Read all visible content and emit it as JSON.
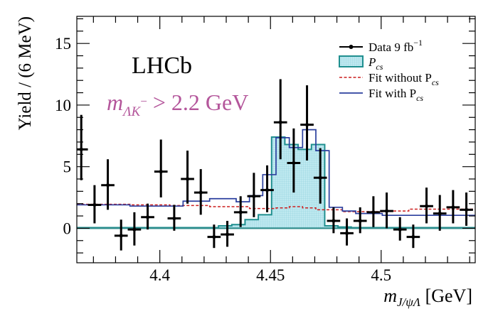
{
  "chart_data": {
    "type": "histogram",
    "title": "",
    "xlabel_parts": {
      "m": "m",
      "sub": "J/ψΛ",
      "unit": "[GeV]"
    },
    "ylabel": "Yield / (6 MeV)",
    "xlim": [
      4.3625,
      4.5425
    ],
    "ylim": [
      -2.8,
      17.2
    ],
    "xticks": [
      {
        "value": 4.4,
        "label": "4.4"
      },
      {
        "value": 4.45,
        "label": "4.45"
      },
      {
        "value": 4.5,
        "label": "4.5"
      }
    ],
    "yticks": [
      {
        "value": 0,
        "label": "0"
      },
      {
        "value": 5,
        "label": "5"
      },
      {
        "value": 10,
        "label": "10"
      },
      {
        "value": 15,
        "label": "15"
      }
    ],
    "experiment_label": "LHCb",
    "selection_label": {
      "m": "m",
      "sub": "ΛK",
      "sup": "−",
      "rest": "> 2.2 GeV"
    },
    "legend_position": "top-right",
    "legend": [
      {
        "key": "data",
        "text": "Data 9 fb",
        "sup": "−1"
      },
      {
        "key": "pcs",
        "text": "P",
        "sub": "cs"
      },
      {
        "key": "fit_without",
        "text": "Fit without P",
        "sub": "cs"
      },
      {
        "key": "fit_with",
        "text": "Fit with P",
        "sub": "cs"
      }
    ],
    "bin_width": 0.006,
    "data": {
      "x": [
        4.3645,
        4.3705,
        4.3765,
        4.3825,
        4.3885,
        4.3945,
        4.4005,
        4.4065,
        4.4125,
        4.4185,
        4.4245,
        4.4305,
        4.4365,
        4.4425,
        4.4485,
        4.4545,
        4.4605,
        4.4665,
        4.4725,
        4.4785,
        4.4845,
        4.4905,
        4.4965,
        4.5025,
        4.5085,
        4.5145,
        4.5205,
        4.5265,
        4.5325,
        4.5385
      ],
      "y": [
        6.4,
        1.9,
        3.5,
        -0.6,
        -0.1,
        0.9,
        4.6,
        0.8,
        4.0,
        2.9,
        -0.7,
        -0.5,
        1.3,
        2.6,
        3.1,
        8.6,
        5.3,
        8.4,
        4.1,
        0.6,
        -0.4,
        0.6,
        1.3,
        1.4,
        -0.1,
        -0.7,
        1.8,
        1.2,
        1.7,
        1.5
      ],
      "err_low": [
        2.5,
        1.5,
        2.0,
        1.2,
        1.3,
        1.0,
        2.1,
        1.0,
        2.0,
        1.8,
        0.9,
        1.0,
        1.2,
        1.7,
        1.8,
        3.0,
        2.4,
        2.9,
        2.1,
        1.0,
        1.0,
        1.0,
        1.2,
        1.4,
        0.9,
        0.9,
        1.4,
        1.4,
        1.3,
        1.3
      ],
      "err_high": [
        2.8,
        1.6,
        2.1,
        1.3,
        1.4,
        1.1,
        2.6,
        1.1,
        2.3,
        1.9,
        1.0,
        1.1,
        1.3,
        1.9,
        2.0,
        3.5,
        2.8,
        3.2,
        2.4,
        1.1,
        1.2,
        1.1,
        1.3,
        1.5,
        1.0,
        1.0,
        1.5,
        1.5,
        1.4,
        1.4
      ]
    },
    "pcs_histogram": {
      "edges": [
        4.3625,
        4.4265,
        4.4325,
        4.4385,
        4.4445,
        4.4505,
        4.4565,
        4.4625,
        4.4685,
        4.4745,
        4.4805,
        4.4865,
        4.5425
      ],
      "values": [
        0.05,
        0.2,
        0.3,
        0.7,
        1.1,
        7.4,
        6.8,
        6.4,
        6.8,
        0.2,
        0.1,
        0.05
      ]
    },
    "fit_without_pcs": {
      "edges": [
        4.3625,
        4.3865,
        4.4045,
        4.4225,
        4.4405,
        4.4525,
        4.4585,
        4.4645,
        4.4705,
        4.4825,
        4.5005,
        4.5125,
        4.5425
      ],
      "values": [
        1.95,
        1.9,
        1.85,
        1.75,
        1.6,
        1.65,
        1.75,
        1.65,
        1.5,
        1.35,
        1.4,
        1.55
      ]
    },
    "fit_with_pcs": {
      "edges": [
        4.3625,
        4.3865,
        4.4105,
        4.4225,
        4.4345,
        4.4405,
        4.4465,
        4.4525,
        4.4585,
        4.4645,
        4.4705,
        4.4765,
        4.4825,
        4.4885,
        4.5005,
        4.5425
      ],
      "values": [
        1.9,
        1.8,
        2.2,
        2.4,
        2.15,
        2.65,
        4.35,
        7.35,
        6.55,
        8.0,
        6.3,
        1.7,
        1.4,
        1.2,
        1.05,
        1.1
      ]
    },
    "colors": {
      "data": "#000000",
      "pcs_fill": "#bfe9f0",
      "pcs_edge": "#1f8f8f",
      "fit_without": "#cc1f1f",
      "fit_with": "#2b3f9e",
      "zero_line": "#2e8b8b",
      "experiment_label": "#000000",
      "selection_label": "#b4569b"
    }
  }
}
